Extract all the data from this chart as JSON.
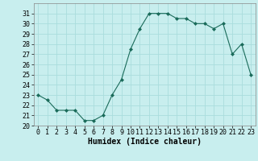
{
  "x": [
    0,
    1,
    2,
    3,
    4,
    5,
    6,
    7,
    8,
    9,
    10,
    11,
    12,
    13,
    14,
    15,
    16,
    17,
    18,
    19,
    20,
    21,
    22,
    23
  ],
  "y": [
    23,
    22.5,
    21.5,
    21.5,
    21.5,
    20.5,
    20.5,
    21,
    23,
    24.5,
    27.5,
    29.5,
    31,
    31,
    31,
    30.5,
    30.5,
    30,
    30,
    29.5,
    30,
    27,
    28,
    25
  ],
  "line_color": "#1a6b5a",
  "marker": "D",
  "marker_size": 2,
  "bg_color": "#c8eeee",
  "grid_color": "#aadddd",
  "xlabel": "Humidex (Indice chaleur)",
  "ylabel": "",
  "xlim": [
    -0.5,
    23.5
  ],
  "ylim": [
    20,
    32
  ],
  "yticks": [
    20,
    21,
    22,
    23,
    24,
    25,
    26,
    27,
    28,
    29,
    30,
    31
  ],
  "xticks": [
    0,
    1,
    2,
    3,
    4,
    5,
    6,
    7,
    8,
    9,
    10,
    11,
    12,
    13,
    14,
    15,
    16,
    17,
    18,
    19,
    20,
    21,
    22,
    23
  ],
  "font_size": 6,
  "xlabel_font_size": 7,
  "linewidth": 0.8
}
